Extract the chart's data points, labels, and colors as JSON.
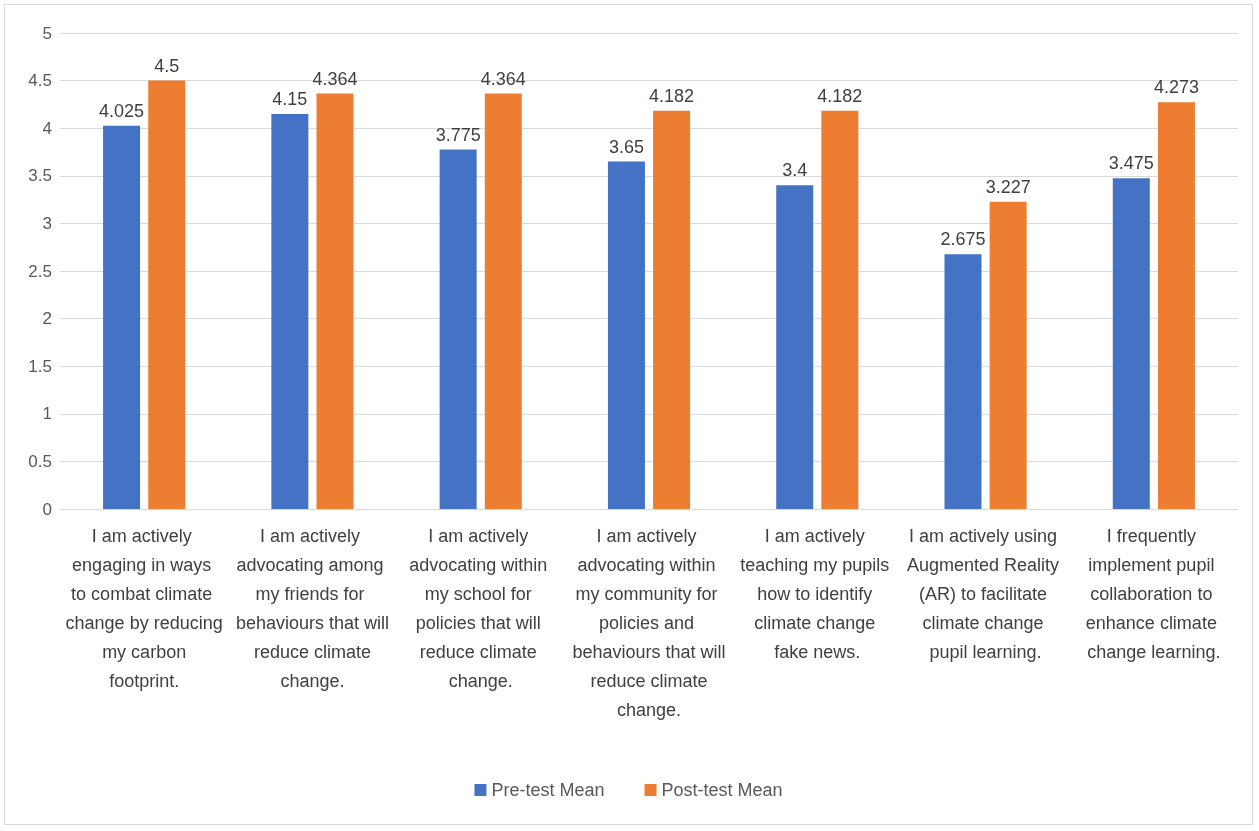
{
  "chart_data": {
    "type": "bar",
    "categories": [
      "I am actively engaging in ways to combat climate change by reducing my carbon footprint.",
      "I am actively advocating among my friends for behaviours that will reduce climate change.",
      "I am actively advocating within my school for policies that will reduce climate change.",
      "I am actively advocating within my community for policies and behaviours that will reduce climate change.",
      "I am actively teaching my pupils how to identify climate change fake news.",
      "I am actively using Augmented Reality (AR) to facilitate climate change pupil learning.",
      "I frequently implement pupil collaboration to enhance climate change learning."
    ],
    "series": [
      {
        "name": "Pre-test Mean",
        "color": "#4472c4",
        "values": [
          4.025,
          4.15,
          3.775,
          3.65,
          3.4,
          2.675,
          3.475
        ]
      },
      {
        "name": "Post-test Mean",
        "color": "#ed7d31",
        "values": [
          4.5,
          4.364,
          4.364,
          4.182,
          4.182,
          3.227,
          4.273
        ]
      }
    ],
    "ylim": [
      0,
      5
    ],
    "yticks": [
      0,
      0.5,
      1,
      1.5,
      2,
      2.5,
      3,
      3.5,
      4,
      4.5,
      5
    ],
    "grid": "y",
    "legend": "bottom",
    "data_labels": true
  }
}
